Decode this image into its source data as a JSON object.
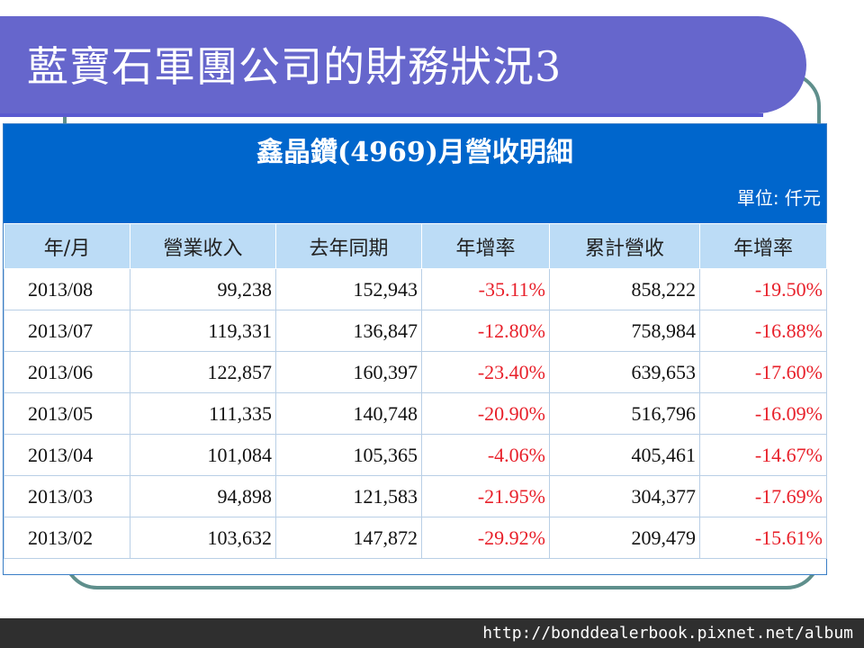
{
  "slide": {
    "title": "藍寶石軍團公司的財務狀況3"
  },
  "table": {
    "title": "鑫晶鑽(4969)月營收明細",
    "unit": "單位: 仟元",
    "headers": [
      "年/月",
      "營業收入",
      "去年同期",
      "年增率",
      "累計營收",
      "年增率"
    ],
    "rows": [
      {
        "month": "2013/08",
        "revenue": "99,238",
        "prev_year": "152,943",
        "yoy": "-35.11%",
        "cumulative": "858,222",
        "cum_yoy": "-19.50%"
      },
      {
        "month": "2013/07",
        "revenue": "119,331",
        "prev_year": "136,847",
        "yoy": "-12.80%",
        "cumulative": "758,984",
        "cum_yoy": "-16.88%"
      },
      {
        "month": "2013/06",
        "revenue": "122,857",
        "prev_year": "160,397",
        "yoy": "-23.40%",
        "cumulative": "639,653",
        "cum_yoy": "-17.60%"
      },
      {
        "month": "2013/05",
        "revenue": "111,335",
        "prev_year": "140,748",
        "yoy": "-20.90%",
        "cumulative": "516,796",
        "cum_yoy": "-16.09%"
      },
      {
        "month": "2013/04",
        "revenue": "101,084",
        "prev_year": "105,365",
        "yoy": "-4.06%",
        "cumulative": "405,461",
        "cum_yoy": "-14.67%"
      },
      {
        "month": "2013/03",
        "revenue": "94,898",
        "prev_year": "121,583",
        "yoy": "-21.95%",
        "cumulative": "304,377",
        "cum_yoy": "-17.69%"
      },
      {
        "month": "2013/02",
        "revenue": "103,632",
        "prev_year": "147,872",
        "yoy": "-29.92%",
        "cumulative": "209,479",
        "cum_yoy": "-15.61%"
      }
    ]
  },
  "footer": {
    "url": "http://bonddealerbook.pixnet.net/album"
  },
  "colors": {
    "title_bar": "#6666cc",
    "table_header": "#0066cc",
    "column_header": "#bcdcf6",
    "negative": "#e8202a"
  }
}
